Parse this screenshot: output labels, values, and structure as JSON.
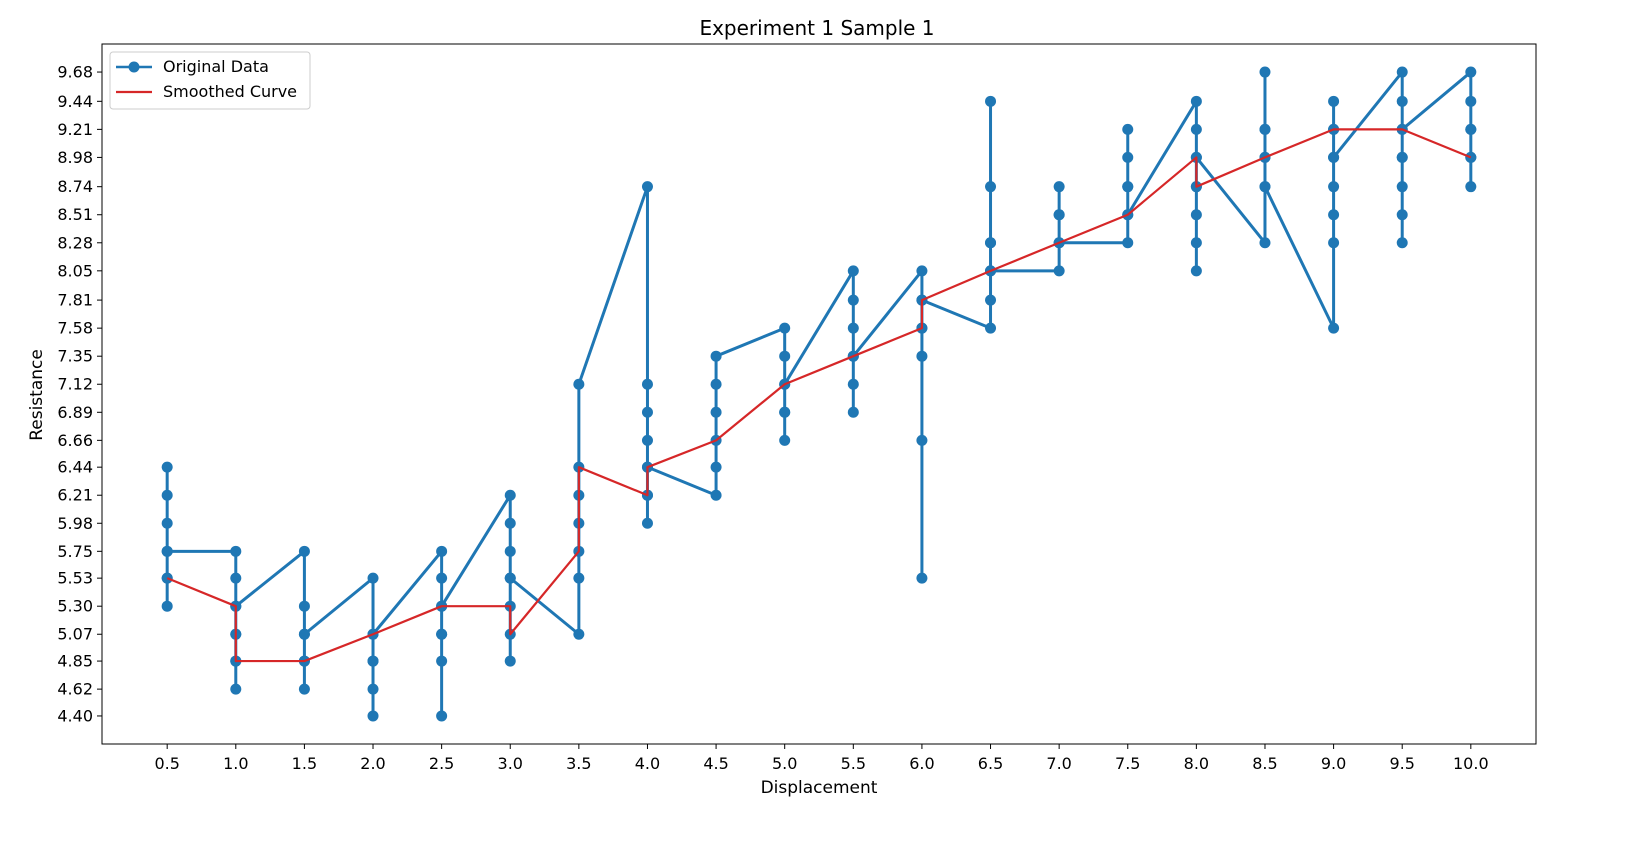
{
  "chart_data": {
    "type": "line",
    "title": "Experiment 1 Sample 1",
    "xlabel": "Displacement",
    "ylabel": "Resistance",
    "xlim": [
      0.025,
      10.475
    ],
    "ylim": [
      4.17,
      9.91
    ],
    "xticks": [
      "0.5",
      "1.0",
      "1.5",
      "2.0",
      "2.5",
      "3.0",
      "3.5",
      "4.0",
      "4.5",
      "5.0",
      "5.5",
      "6.0",
      "6.5",
      "7.0",
      "7.5",
      "8.0",
      "8.5",
      "9.0",
      "9.5",
      "10.0"
    ],
    "yticks": [
      "4.40",
      "4.62",
      "4.85",
      "5.07",
      "5.30",
      "5.53",
      "5.75",
      "5.98",
      "6.21",
      "6.44",
      "6.66",
      "6.89",
      "7.12",
      "7.35",
      "7.58",
      "7.81",
      "8.05",
      "8.28",
      "8.51",
      "8.74",
      "8.98",
      "9.21",
      "9.44",
      "9.68"
    ],
    "grid": false,
    "legend": "top-left",
    "series": [
      {
        "name": "Original Data",
        "color": "#1f77b4",
        "style": "line-marker",
        "points": [
          [
            0.5,
            6.44
          ],
          [
            0.5,
            6.21
          ],
          [
            0.5,
            5.98
          ],
          [
            0.5,
            5.75
          ],
          [
            0.5,
            5.53
          ],
          [
            0.5,
            5.3
          ],
          [
            0.5,
            5.53
          ],
          [
            0.5,
            5.75
          ],
          [
            1.0,
            5.75
          ],
          [
            1.0,
            5.53
          ],
          [
            1.0,
            5.3
          ],
          [
            1.0,
            5.07
          ],
          [
            1.0,
            4.85
          ],
          [
            1.0,
            4.62
          ],
          [
            1.0,
            4.85
          ],
          [
            1.0,
            5.07
          ],
          [
            1.0,
            5.3
          ],
          [
            1.5,
            5.75
          ],
          [
            1.5,
            5.3
          ],
          [
            1.5,
            5.07
          ],
          [
            1.5,
            4.85
          ],
          [
            1.5,
            4.62
          ],
          [
            1.5,
            4.85
          ],
          [
            1.5,
            5.07
          ],
          [
            2.0,
            5.53
          ],
          [
            2.0,
            5.07
          ],
          [
            2.0,
            4.85
          ],
          [
            2.0,
            4.62
          ],
          [
            2.0,
            4.4
          ],
          [
            2.0,
            4.85
          ],
          [
            2.0,
            5.07
          ],
          [
            2.5,
            5.75
          ],
          [
            2.5,
            5.53
          ],
          [
            2.5,
            5.3
          ],
          [
            2.5,
            5.07
          ],
          [
            2.5,
            4.85
          ],
          [
            2.5,
            4.4
          ],
          [
            2.5,
            5.07
          ],
          [
            2.5,
            5.3
          ],
          [
            3.0,
            6.21
          ],
          [
            3.0,
            5.98
          ],
          [
            3.0,
            5.75
          ],
          [
            3.0,
            5.53
          ],
          [
            3.0,
            5.3
          ],
          [
            3.0,
            5.07
          ],
          [
            3.0,
            4.85
          ],
          [
            3.0,
            5.53
          ],
          [
            3.5,
            5.07
          ],
          [
            3.5,
            5.53
          ],
          [
            3.5,
            5.75
          ],
          [
            3.5,
            5.98
          ],
          [
            3.5,
            6.21
          ],
          [
            3.5,
            6.44
          ],
          [
            3.5,
            7.12
          ],
          [
            4.0,
            8.74
          ],
          [
            4.0,
            7.12
          ],
          [
            4.0,
            6.89
          ],
          [
            4.0,
            6.66
          ],
          [
            4.0,
            6.44
          ],
          [
            4.0,
            6.21
          ],
          [
            4.0,
            5.98
          ],
          [
            4.0,
            6.21
          ],
          [
            4.0,
            6.44
          ],
          [
            4.5,
            6.21
          ],
          [
            4.5,
            6.44
          ],
          [
            4.5,
            6.66
          ],
          [
            4.5,
            6.89
          ],
          [
            4.5,
            7.12
          ],
          [
            4.5,
            7.35
          ],
          [
            5.0,
            7.58
          ],
          [
            5.0,
            7.35
          ],
          [
            5.0,
            7.12
          ],
          [
            5.0,
            6.89
          ],
          [
            5.0,
            6.66
          ],
          [
            5.0,
            6.89
          ],
          [
            5.0,
            7.12
          ],
          [
            5.5,
            8.05
          ],
          [
            5.5,
            7.81
          ],
          [
            5.5,
            7.58
          ],
          [
            5.5,
            7.35
          ],
          [
            5.5,
            7.12
          ],
          [
            5.5,
            6.89
          ],
          [
            5.5,
            7.35
          ],
          [
            6.0,
            8.05
          ],
          [
            6.0,
            7.81
          ],
          [
            6.0,
            7.58
          ],
          [
            6.0,
            7.35
          ],
          [
            6.0,
            6.66
          ],
          [
            6.0,
            5.53
          ],
          [
            6.0,
            7.58
          ],
          [
            6.0,
            7.81
          ],
          [
            6.5,
            7.58
          ],
          [
            6.5,
            7.81
          ],
          [
            6.5,
            8.05
          ],
          [
            6.5,
            8.28
          ],
          [
            6.5,
            8.74
          ],
          [
            6.5,
            9.44
          ],
          [
            6.5,
            8.28
          ],
          [
            6.5,
            8.05
          ],
          [
            7.0,
            8.05
          ],
          [
            7.0,
            8.28
          ],
          [
            7.0,
            8.51
          ],
          [
            7.0,
            8.74
          ],
          [
            7.0,
            8.51
          ],
          [
            7.0,
            8.28
          ],
          [
            7.5,
            8.28
          ],
          [
            7.5,
            8.51
          ],
          [
            7.5,
            8.74
          ],
          [
            7.5,
            8.98
          ],
          [
            7.5,
            9.21
          ],
          [
            7.5,
            8.74
          ],
          [
            7.5,
            8.51
          ],
          [
            8.0,
            9.44
          ],
          [
            8.0,
            9.21
          ],
          [
            8.0,
            8.98
          ],
          [
            8.0,
            8.74
          ],
          [
            8.0,
            8.51
          ],
          [
            8.0,
            8.28
          ],
          [
            8.0,
            8.05
          ],
          [
            8.0,
            8.74
          ],
          [
            8.0,
            8.98
          ],
          [
            8.5,
            8.28
          ],
          [
            8.5,
            8.74
          ],
          [
            8.5,
            8.98
          ],
          [
            8.5,
            9.21
          ],
          [
            8.5,
            9.68
          ],
          [
            8.5,
            9.21
          ],
          [
            8.5,
            8.98
          ],
          [
            8.5,
            8.74
          ],
          [
            9.0,
            7.58
          ],
          [
            9.0,
            8.28
          ],
          [
            9.0,
            8.51
          ],
          [
            9.0,
            8.74
          ],
          [
            9.0,
            8.98
          ],
          [
            9.0,
            9.21
          ],
          [
            9.0,
            9.44
          ],
          [
            9.0,
            9.21
          ],
          [
            9.0,
            8.98
          ],
          [
            9.5,
            9.68
          ],
          [
            9.5,
            9.44
          ],
          [
            9.5,
            9.21
          ],
          [
            9.5,
            8.98
          ],
          [
            9.5,
            8.74
          ],
          [
            9.5,
            8.51
          ],
          [
            9.5,
            8.28
          ],
          [
            9.5,
            8.98
          ],
          [
            9.5,
            9.21
          ],
          [
            10.0,
            9.68
          ],
          [
            10.0,
            9.44
          ],
          [
            10.0,
            9.21
          ],
          [
            10.0,
            8.98
          ],
          [
            10.0,
            8.74
          ],
          [
            10.0,
            8.98
          ],
          [
            10.0,
            9.21
          ]
        ]
      },
      {
        "name": "Smoothed Curve",
        "color": "#d62728",
        "style": "line",
        "points": [
          [
            0.5,
            5.53
          ],
          [
            1.0,
            5.3
          ],
          [
            1.0,
            4.85
          ],
          [
            1.5,
            4.85
          ],
          [
            2.0,
            5.07
          ],
          [
            2.5,
            5.3
          ],
          [
            3.0,
            5.3
          ],
          [
            3.0,
            5.07
          ],
          [
            3.5,
            5.75
          ],
          [
            3.5,
            6.44
          ],
          [
            4.0,
            6.21
          ],
          [
            4.0,
            6.44
          ],
          [
            4.5,
            6.66
          ],
          [
            5.0,
            7.12
          ],
          [
            5.5,
            7.35
          ],
          [
            6.0,
            7.58
          ],
          [
            6.0,
            7.81
          ],
          [
            6.5,
            8.05
          ],
          [
            7.0,
            8.28
          ],
          [
            7.5,
            8.51
          ],
          [
            8.0,
            8.98
          ],
          [
            8.0,
            8.74
          ],
          [
            8.5,
            8.98
          ],
          [
            9.0,
            9.21
          ],
          [
            9.5,
            9.21
          ],
          [
            10.0,
            8.98
          ]
        ]
      }
    ]
  }
}
